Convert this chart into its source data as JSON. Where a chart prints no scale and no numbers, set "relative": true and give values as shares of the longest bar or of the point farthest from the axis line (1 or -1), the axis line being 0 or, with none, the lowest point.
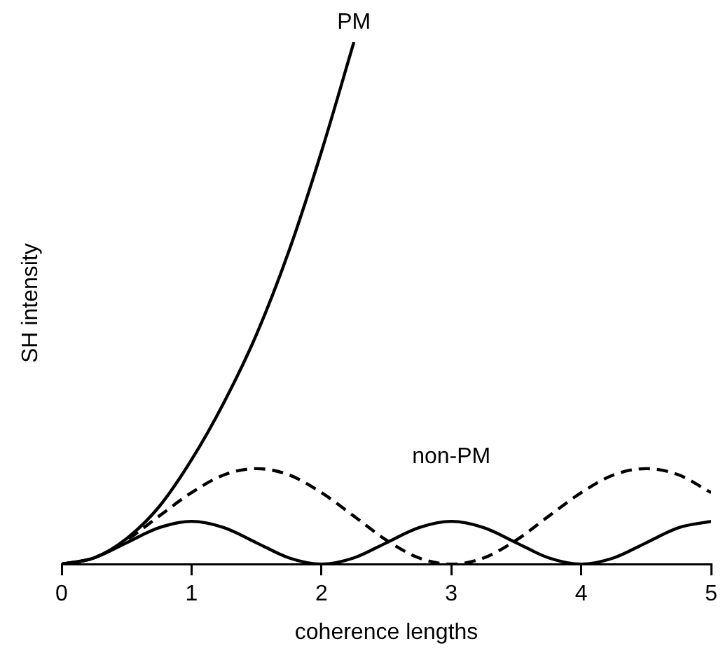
{
  "chart_data": {
    "type": "line",
    "xlabel": "coherence lengths",
    "ylabel": "SH intensity",
    "relative": true,
    "xlim": [
      0,
      5
    ],
    "xticks": [
      0,
      1,
      2,
      3,
      4,
      5
    ],
    "grid": false,
    "legend": false,
    "marker": "none",
    "annotations": [
      {
        "text": "PM",
        "x": 2.25,
        "y": 1
      },
      "non-PM"
    ],
    "series": [
      {
        "color": "#000000",
        "line_style": "solid",
        "x": [
          0,
          0.25,
          0.5,
          0.75,
          1,
          1.25,
          1.5,
          1.75,
          2,
          2.25
        ],
        "values": [
          0,
          0.012,
          0.049,
          0.11,
          0.2,
          0.31,
          0.44,
          0.6,
          0.79,
          1
        ]
      },
      {
        "color": "#000000",
        "line_style": "dashed",
        "x": [
          0,
          0.25,
          0.5,
          0.75,
          1,
          1.25,
          1.5,
          1.75,
          2,
          2.25,
          2.5,
          2.75,
          3,
          3.25,
          3.5,
          3.75,
          4,
          4.25,
          4.5,
          4.75,
          5
        ],
        "values": [
          0,
          0.012,
          0.046,
          0.092,
          0.137,
          0.171,
          0.183,
          0.171,
          0.137,
          0.092,
          0.046,
          0.012,
          0,
          0.012,
          0.046,
          0.092,
          0.137,
          0.171,
          0.183,
          0.171,
          0.137
        ]
      },
      {
        "color": "#000000",
        "line_style": "solid",
        "x": [
          0,
          0.25,
          0.5,
          0.75,
          1,
          1.25,
          1.5,
          1.75,
          2,
          2.25,
          2.5,
          2.75,
          3,
          3.25,
          3.5,
          3.75,
          4,
          4.25,
          4.5,
          4.75,
          5
        ],
        "values": [
          0,
          0.012,
          0.041,
          0.07,
          0.082,
          0.07,
          0.041,
          0.012,
          0,
          0.012,
          0.041,
          0.07,
          0.082,
          0.07,
          0.041,
          0.012,
          0,
          0.012,
          0.041,
          0.07,
          0.082
        ]
      }
    ]
  }
}
